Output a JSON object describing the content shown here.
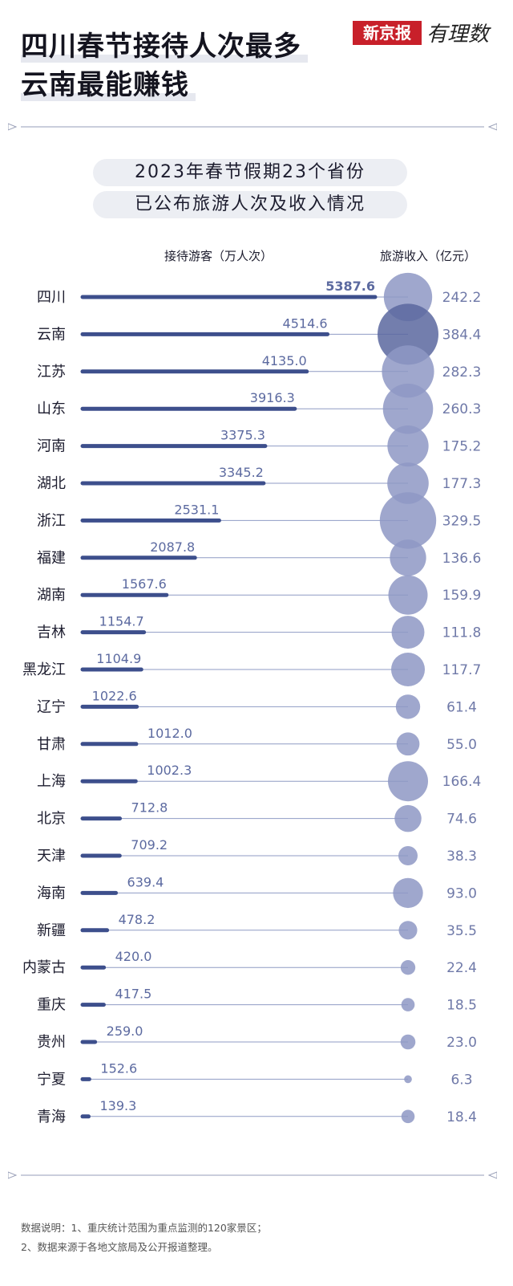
{
  "title": {
    "line1": "四川春节接待人次最多",
    "line2": "云南最能赚钱"
  },
  "brand": {
    "name": "新京报",
    "column": "有理数"
  },
  "chart_data": {
    "type": "bar",
    "title_line1": "2023年春节假期23个省份",
    "title_line2": "已公布旅游人次及收入情况",
    "bar_label": "接待游客（万人次）",
    "bubble_label": "旅游收入（亿元）",
    "categories": [
      "四川",
      "云南",
      "江苏",
      "山东",
      "河南",
      "湖北",
      "浙江",
      "福建",
      "湖南",
      "吉林",
      "黑龙江",
      "辽宁",
      "甘肃",
      "上海",
      "北京",
      "天津",
      "海南",
      "新疆",
      "内蒙古",
      "重庆",
      "贵州",
      "宁夏",
      "青海"
    ],
    "series": [
      {
        "name": "接待游客（万人次）",
        "values": [
          "5387.6",
          "4514.6",
          "4135.0",
          "3916.3",
          "3375.3",
          "3345.2",
          "2531.1",
          "2087.8",
          "1567.6",
          "1154.7",
          "1104.9",
          "1022.6",
          "1012.0",
          "1002.3",
          "712.8",
          "709.2",
          "639.4",
          "478.2",
          "420.0",
          "417.5",
          "259.0",
          "152.6",
          "139.3"
        ]
      },
      {
        "name": "旅游收入（亿元）",
        "values": [
          "242.2",
          "384.4",
          "282.3",
          "260.3",
          "175.2",
          "177.3",
          "329.5",
          "136.6",
          "159.9",
          "111.8",
          "117.7",
          "61.4",
          "55.0",
          "166.4",
          "74.6",
          "38.3",
          "93.0",
          "35.5",
          "22.4",
          "18.5",
          "23.0",
          "6.3",
          "18.4"
        ]
      }
    ]
  },
  "notes": {
    "line1": "数据说明：1、重庆统计范围为重点监测的120家景区；",
    "line2": "2、数据来源于各地文旅局及公开报道整理。"
  },
  "colors": {
    "bar": "#3d4f8c",
    "line": "#8f9bc4",
    "bubble": "#8e98c4",
    "bubble_max": "#5a679f",
    "value_text": "#5c6aa0",
    "bubble_text": "#6f79a8"
  }
}
